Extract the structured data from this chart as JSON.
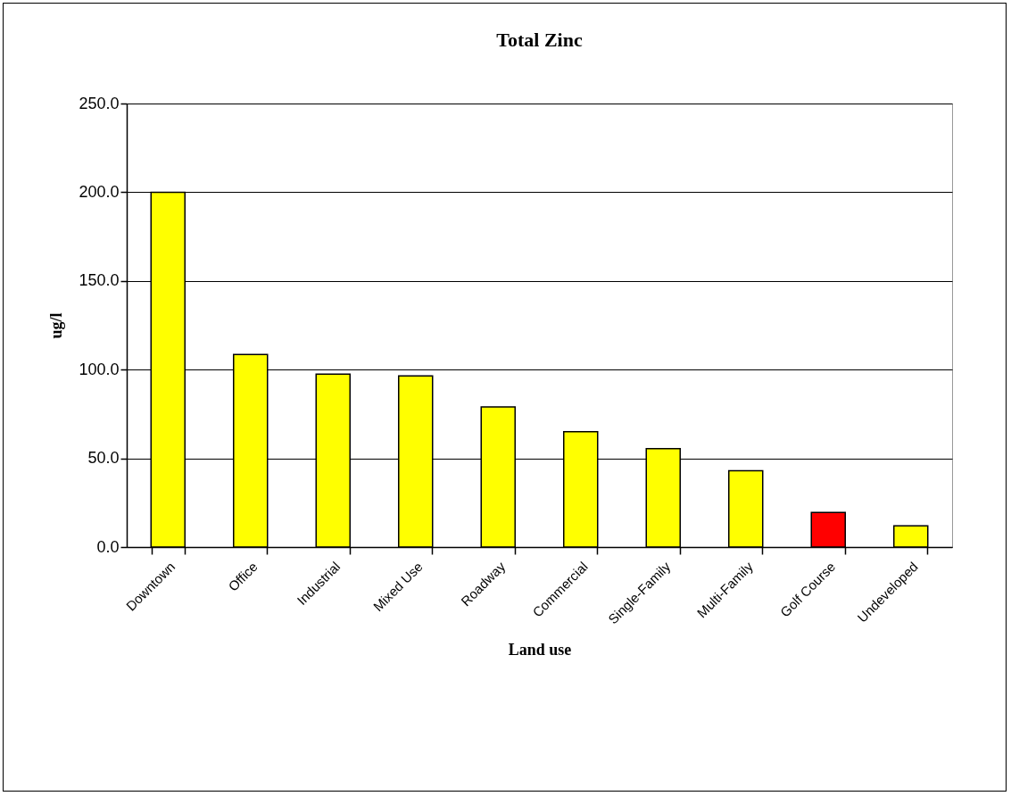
{
  "chart_data": {
    "type": "bar",
    "title": "Total Zinc",
    "xlabel": "Land use",
    "ylabel": "ug/l",
    "categories": [
      "Downtown",
      "Office",
      "Industrial",
      "Mixed Use",
      "Roadway",
      "Commercial",
      "Single-Family",
      "Multi-Family",
      "Golf Course",
      "Undeveloped"
    ],
    "values": [
      200,
      108.5,
      97.5,
      96.5,
      79,
      65,
      55.5,
      43,
      19.5,
      12
    ],
    "colors": [
      "#ffff00",
      "#ffff00",
      "#ffff00",
      "#ffff00",
      "#ffff00",
      "#ffff00",
      "#ffff00",
      "#ffff00",
      "#ff0000",
      "#ffff00"
    ],
    "ylim": [
      0,
      250
    ],
    "yticks": [
      {
        "value": 0,
        "label": "0.0"
      },
      {
        "value": 50,
        "label": "50.0"
      },
      {
        "value": 100,
        "label": "100.0"
      },
      {
        "value": 150,
        "label": "150.0"
      },
      {
        "value": 200,
        "label": "200.0"
      },
      {
        "value": 250,
        "label": "250.0"
      }
    ],
    "grid": "y"
  }
}
